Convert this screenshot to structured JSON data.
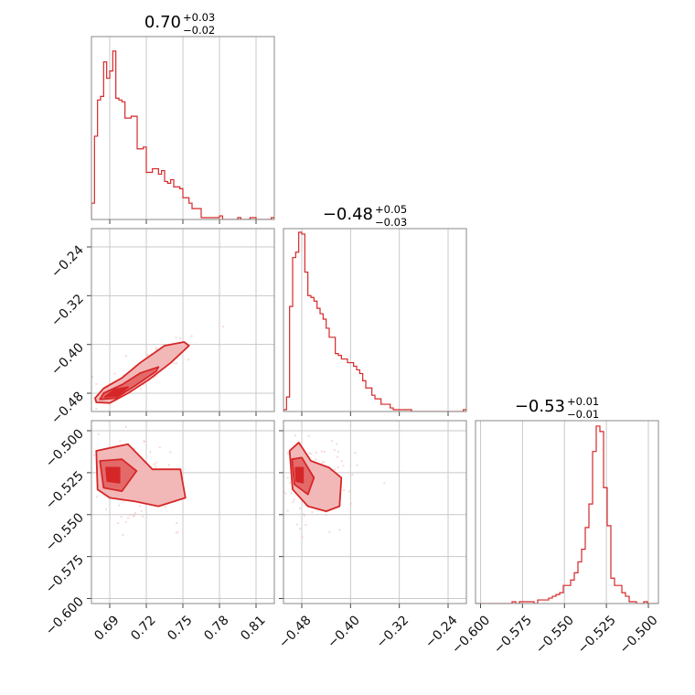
{
  "chart_data": {
    "type": "corner",
    "color": "#d62728",
    "fill_light": "#f2b8b8",
    "fill_mid": "#e46a6a",
    "grid": true,
    "parameters": [
      {
        "title": "0.70",
        "title_upper": "+0.03",
        "title_lower": "−0.02",
        "range": [
          0.675,
          0.825
        ],
        "ticks": [
          0.69,
          0.72,
          0.75,
          0.78,
          0.81
        ],
        "tick_labels": [
          "0.69",
          "0.72",
          "0.75",
          "0.78",
          "0.81"
        ],
        "hist": [
          0.09,
          0.46,
          0.66,
          0.68,
          0.87,
          0.78,
          0.82,
          0.93,
          0.67,
          0.66,
          0.65,
          0.56,
          0.56,
          0.57,
          0.57,
          0.39,
          0.39,
          0.4,
          0.26,
          0.26,
          0.28,
          0.28,
          0.25,
          0.27,
          0.21,
          0.2,
          0.22,
          0.18,
          0.18,
          0.17,
          0.12,
          0.12,
          0.09,
          0.06,
          0.06,
          0.06,
          0.01,
          0.01,
          0.01,
          0.01,
          0.01,
          0.01,
          0.02,
          0.0,
          0.0,
          0.0,
          0.0,
          0.0,
          0.01,
          0.0,
          0.0,
          0.0,
          0.01,
          0.01,
          0.0,
          0.0,
          0.0,
          0.0,
          0.0,
          0.01
        ]
      },
      {
        "title": "−0.48",
        "title_upper": "+0.05",
        "title_lower": "−0.03",
        "range": [
          -0.51,
          -0.21
        ],
        "ticks": [
          -0.48,
          -0.4,
          -0.32,
          -0.24
        ],
        "tick_labels": [
          "−0.48",
          "−0.40",
          "−0.32",
          "−0.24"
        ],
        "hist": [
          0.01,
          0.08,
          0.58,
          0.85,
          0.88,
          0.99,
          0.98,
          0.77,
          0.64,
          0.63,
          0.61,
          0.57,
          0.54,
          0.51,
          0.46,
          0.41,
          0.41,
          0.32,
          0.31,
          0.29,
          0.29,
          0.27,
          0.27,
          0.25,
          0.23,
          0.21,
          0.17,
          0.13,
          0.13,
          0.09,
          0.07,
          0.07,
          0.04,
          0.04,
          0.04,
          0.02,
          0.01,
          0.01,
          0.01,
          0.01,
          0.01,
          0.01,
          0.0,
          0.0,
          0.0,
          0.0,
          0.0,
          0.0,
          0.0,
          0.0,
          0.0,
          0.0,
          0.0,
          0.0,
          0.0,
          0.0,
          0.0,
          0.0,
          0.0,
          0.01
        ]
      },
      {
        "title": "−0.53",
        "title_upper": "+0.01",
        "title_lower": "−0.01",
        "range": [
          -0.603,
          -0.494
        ],
        "ticks": [
          -0.6,
          -0.575,
          -0.55,
          -0.525,
          -0.5
        ],
        "tick_labels": [
          "−0.600",
          "−0.575",
          "−0.550",
          "−0.525",
          "−0.500"
        ],
        "hist": [
          0.0,
          0.0,
          0.0,
          0.0,
          0.0,
          0.0,
          0.0,
          0.0,
          0.0,
          0.0,
          0.01,
          0.0,
          0.01,
          0.01,
          0.01,
          0.01,
          0.0,
          0.02,
          0.02,
          0.02,
          0.03,
          0.04,
          0.05,
          0.06,
          0.1,
          0.1,
          0.13,
          0.17,
          0.23,
          0.3,
          0.42,
          0.55,
          0.84,
          0.98,
          0.95,
          0.64,
          0.43,
          0.14,
          0.1,
          0.1,
          0.06,
          0.04,
          0.01,
          0.01,
          0.0,
          0.0,
          0.01,
          0.0,
          0.0,
          0.0
        ]
      }
    ],
    "contour_regions": [
      {
        "pair": [
          1,
          0
        ],
        "outer": [
          [
            0.679,
            -0.495
          ],
          [
            0.69,
            -0.496
          ],
          [
            0.705,
            -0.48
          ],
          [
            0.722,
            -0.458
          ],
          [
            0.74,
            -0.43
          ],
          [
            0.755,
            -0.402
          ],
          [
            0.751,
            -0.396
          ],
          [
            0.735,
            -0.402
          ],
          [
            0.715,
            -0.43
          ],
          [
            0.7,
            -0.455
          ],
          [
            0.685,
            -0.472
          ],
          [
            0.678,
            -0.488
          ]
        ],
        "inner": [
          [
            0.682,
            -0.49
          ],
          [
            0.695,
            -0.488
          ],
          [
            0.712,
            -0.466
          ],
          [
            0.728,
            -0.444
          ],
          [
            0.73,
            -0.437
          ],
          [
            0.715,
            -0.447
          ],
          [
            0.7,
            -0.466
          ],
          [
            0.685,
            -0.48
          ]
        ],
        "core": [
          [
            0.686,
            -0.486
          ],
          [
            0.697,
            -0.484
          ],
          [
            0.705,
            -0.47
          ],
          [
            0.694,
            -0.474
          ]
        ]
      },
      {
        "pair": [
          2,
          0
        ],
        "outer": [
          [
            0.679,
            -0.512
          ],
          [
            0.705,
            -0.508
          ],
          [
            0.725,
            -0.523
          ],
          [
            0.748,
            -0.523
          ],
          [
            0.752,
            -0.54
          ],
          [
            0.73,
            -0.545
          ],
          [
            0.71,
            -0.542
          ],
          [
            0.69,
            -0.54
          ],
          [
            0.68,
            -0.535
          ]
        ],
        "inner": [
          [
            0.682,
            -0.518
          ],
          [
            0.7,
            -0.517
          ],
          [
            0.712,
            -0.524
          ],
          [
            0.7,
            -0.536
          ],
          [
            0.685,
            -0.534
          ]
        ],
        "core": [
          [
            0.687,
            -0.522
          ],
          [
            0.698,
            -0.522
          ],
          [
            0.698,
            -0.531
          ],
          [
            0.688,
            -0.53
          ]
        ]
      },
      {
        "pair": [
          2,
          1
        ],
        "outer": [
          [
            -0.5,
            -0.512
          ],
          [
            -0.485,
            -0.507
          ],
          [
            -0.465,
            -0.518
          ],
          [
            -0.435,
            -0.522
          ],
          [
            -0.415,
            -0.528
          ],
          [
            -0.418,
            -0.545
          ],
          [
            -0.44,
            -0.548
          ],
          [
            -0.47,
            -0.545
          ],
          [
            -0.495,
            -0.535
          ]
        ],
        "inner": [
          [
            -0.496,
            -0.517
          ],
          [
            -0.48,
            -0.516
          ],
          [
            -0.46,
            -0.528
          ],
          [
            -0.47,
            -0.538
          ],
          [
            -0.492,
            -0.532
          ]
        ],
        "core": [
          [
            -0.49,
            -0.522
          ],
          [
            -0.478,
            -0.522
          ],
          [
            -0.478,
            -0.531
          ],
          [
            -0.489,
            -0.53
          ]
        ]
      }
    ]
  }
}
